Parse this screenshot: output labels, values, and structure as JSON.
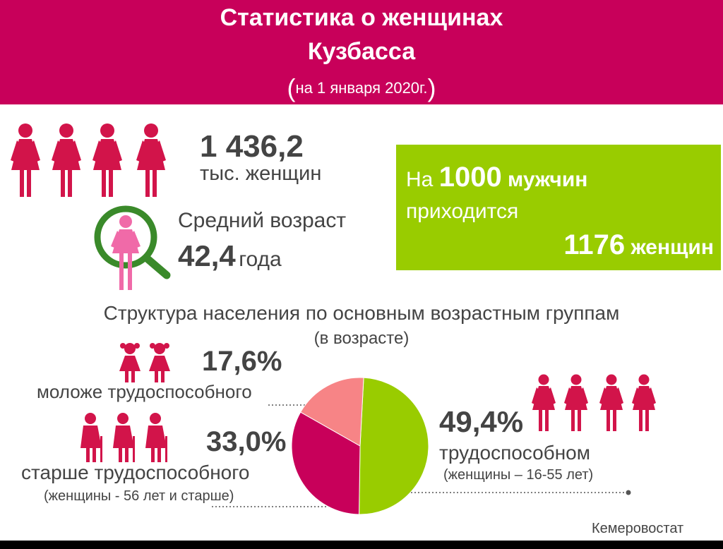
{
  "header": {
    "title_line1": "Статистика о женщинах",
    "title_line2": "Кузбасса",
    "paren_open": "(",
    "subtitle": "на 1 января 2020г.",
    "paren_close": ")"
  },
  "population": {
    "value": "1 436,2",
    "unit": "тыс. женщин"
  },
  "average_age": {
    "label": "Средний возраст",
    "value": "42,4",
    "unit": "года"
  },
  "ratio": {
    "prefix": "На",
    "men_value": "1000",
    "men_unit": "мужчин",
    "line2": "приходится",
    "women_value": "1176",
    "women_unit": "женщин"
  },
  "structure": {
    "title": "Структура населения по основным возрастным группам",
    "subtitle": "(в возрасте)",
    "young_pct": "17,6%",
    "young_label": "моложе трудоспособного",
    "old_pct": "33,0%",
    "old_label": "старше трудоспособного",
    "old_note": "(женщины  - 56 лет и старше)",
    "work_pct": "49,4%",
    "work_label": "трудоспособном",
    "work_note": "(женщины  – 16-55 лет)"
  },
  "source": "Кемеровостат",
  "colors": {
    "brand": "#c8005a",
    "accent_green": "#99cc00",
    "figure": "#d2144a",
    "young_slice": "#f78486",
    "old_slice": "#c8005a",
    "work_slice": "#99cc00"
  },
  "icons": [
    "woman-icon",
    "magnifier-icon",
    "girl-icon",
    "elderly-woman-icon"
  ],
  "chart_data": {
    "type": "pie",
    "title": "Структура населения по основным возрастным группам",
    "categories": [
      "трудоспособном",
      "старше трудоспособного",
      "моложе трудоспособного"
    ],
    "values": [
      49.4,
      33.0,
      17.6
    ],
    "colors": [
      "#99cc00",
      "#c8005a",
      "#f78486"
    ],
    "unit": "%"
  }
}
